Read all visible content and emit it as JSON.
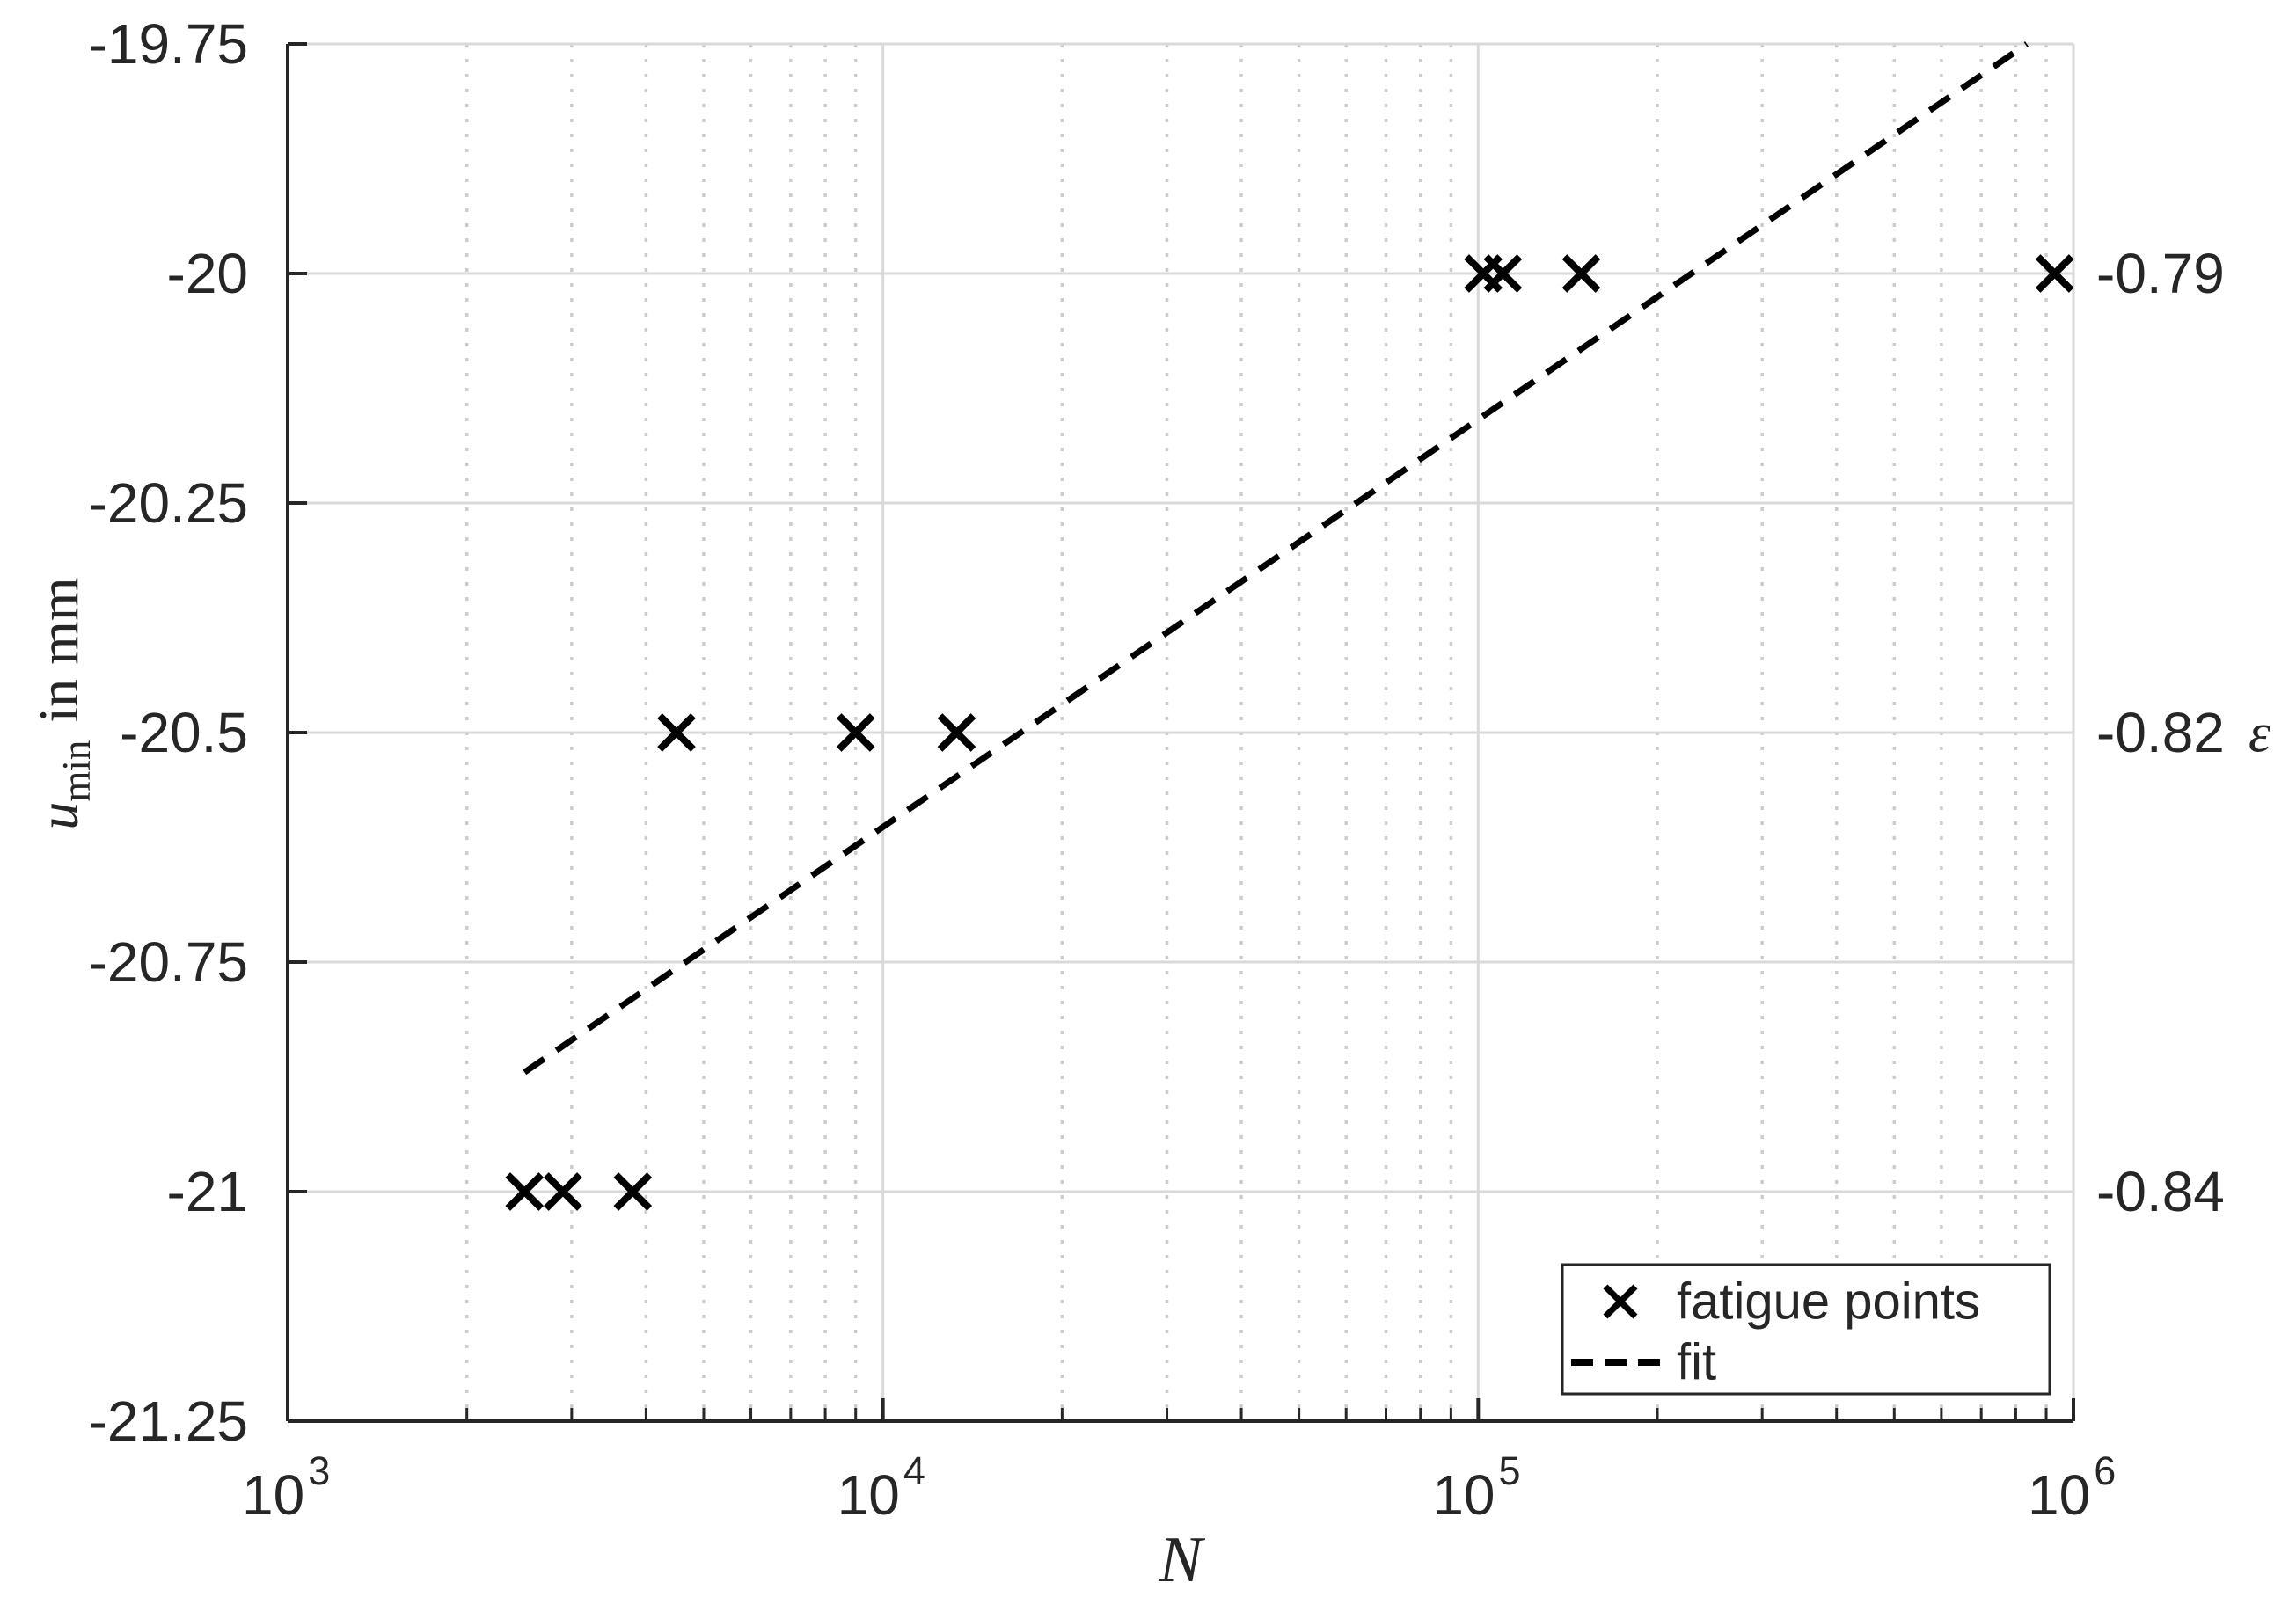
{
  "figure": {
    "background": "#ffffff",
    "colors": {
      "axis": "#262626",
      "grid": "#d9d9d9",
      "minor_grid": "#cccccc",
      "data": "#000000",
      "legend_border": "#262626",
      "legend_fill": "#ffffff"
    }
  },
  "chart_data": {
    "type": "scatter",
    "xlabel": "N",
    "ylabel": "u_min in mm",
    "ylabel_parts": {
      "symbol": "u",
      "subscript": "min",
      "unit": "in mm"
    },
    "right_axis_label": "ε",
    "x_scale": "log",
    "xlim": [
      1000,
      1000000
    ],
    "ylim": [
      -21.25,
      -19.75
    ],
    "x_major_ticks": [
      1000,
      10000,
      100000,
      1000000
    ],
    "x_tick_labels": [
      {
        "base": "10",
        "exp": "3"
      },
      {
        "base": "10",
        "exp": "4"
      },
      {
        "base": "10",
        "exp": "5"
      },
      {
        "base": "10",
        "exp": "6"
      }
    ],
    "y_ticks": [
      -19.75,
      -20,
      -20.25,
      -20.5,
      -20.75,
      -21,
      -21.25
    ],
    "y_tick_labels": [
      "-19.75",
      "-20",
      "-20.25",
      "-20.5",
      "-20.75",
      "-21",
      "-21.25"
    ],
    "right_tick_labels": [
      {
        "y": -20,
        "label": "-0.79"
      },
      {
        "y": -20.5,
        "label": "-0.82"
      },
      {
        "y": -21,
        "label": "-0.84"
      }
    ],
    "grid": {
      "y_major": true,
      "x_major": true,
      "x_minor_dotted": true
    },
    "series": [
      {
        "name": "fatigue points",
        "type": "scatter",
        "marker": "x",
        "points": [
          [
            2500,
            -21
          ],
          [
            2900,
            -21
          ],
          [
            3800,
            -21
          ],
          [
            4500,
            -20.5
          ],
          [
            9000,
            -20.5
          ],
          [
            13300,
            -20.5
          ],
          [
            102000,
            -20
          ],
          [
            110000,
            -20
          ],
          [
            149000,
            -20
          ],
          [
            930000,
            -20
          ]
        ]
      },
      {
        "name": "fit",
        "type": "line",
        "line_style": "dashed",
        "points": [
          [
            2500,
            -20.87
          ],
          [
            835000,
            -19.75
          ]
        ]
      }
    ],
    "legend": {
      "position": "bottom-right",
      "entries": [
        {
          "marker": "x",
          "label": "fatigue points"
        },
        {
          "marker": "dashed-line",
          "label": "fit"
        }
      ]
    }
  }
}
